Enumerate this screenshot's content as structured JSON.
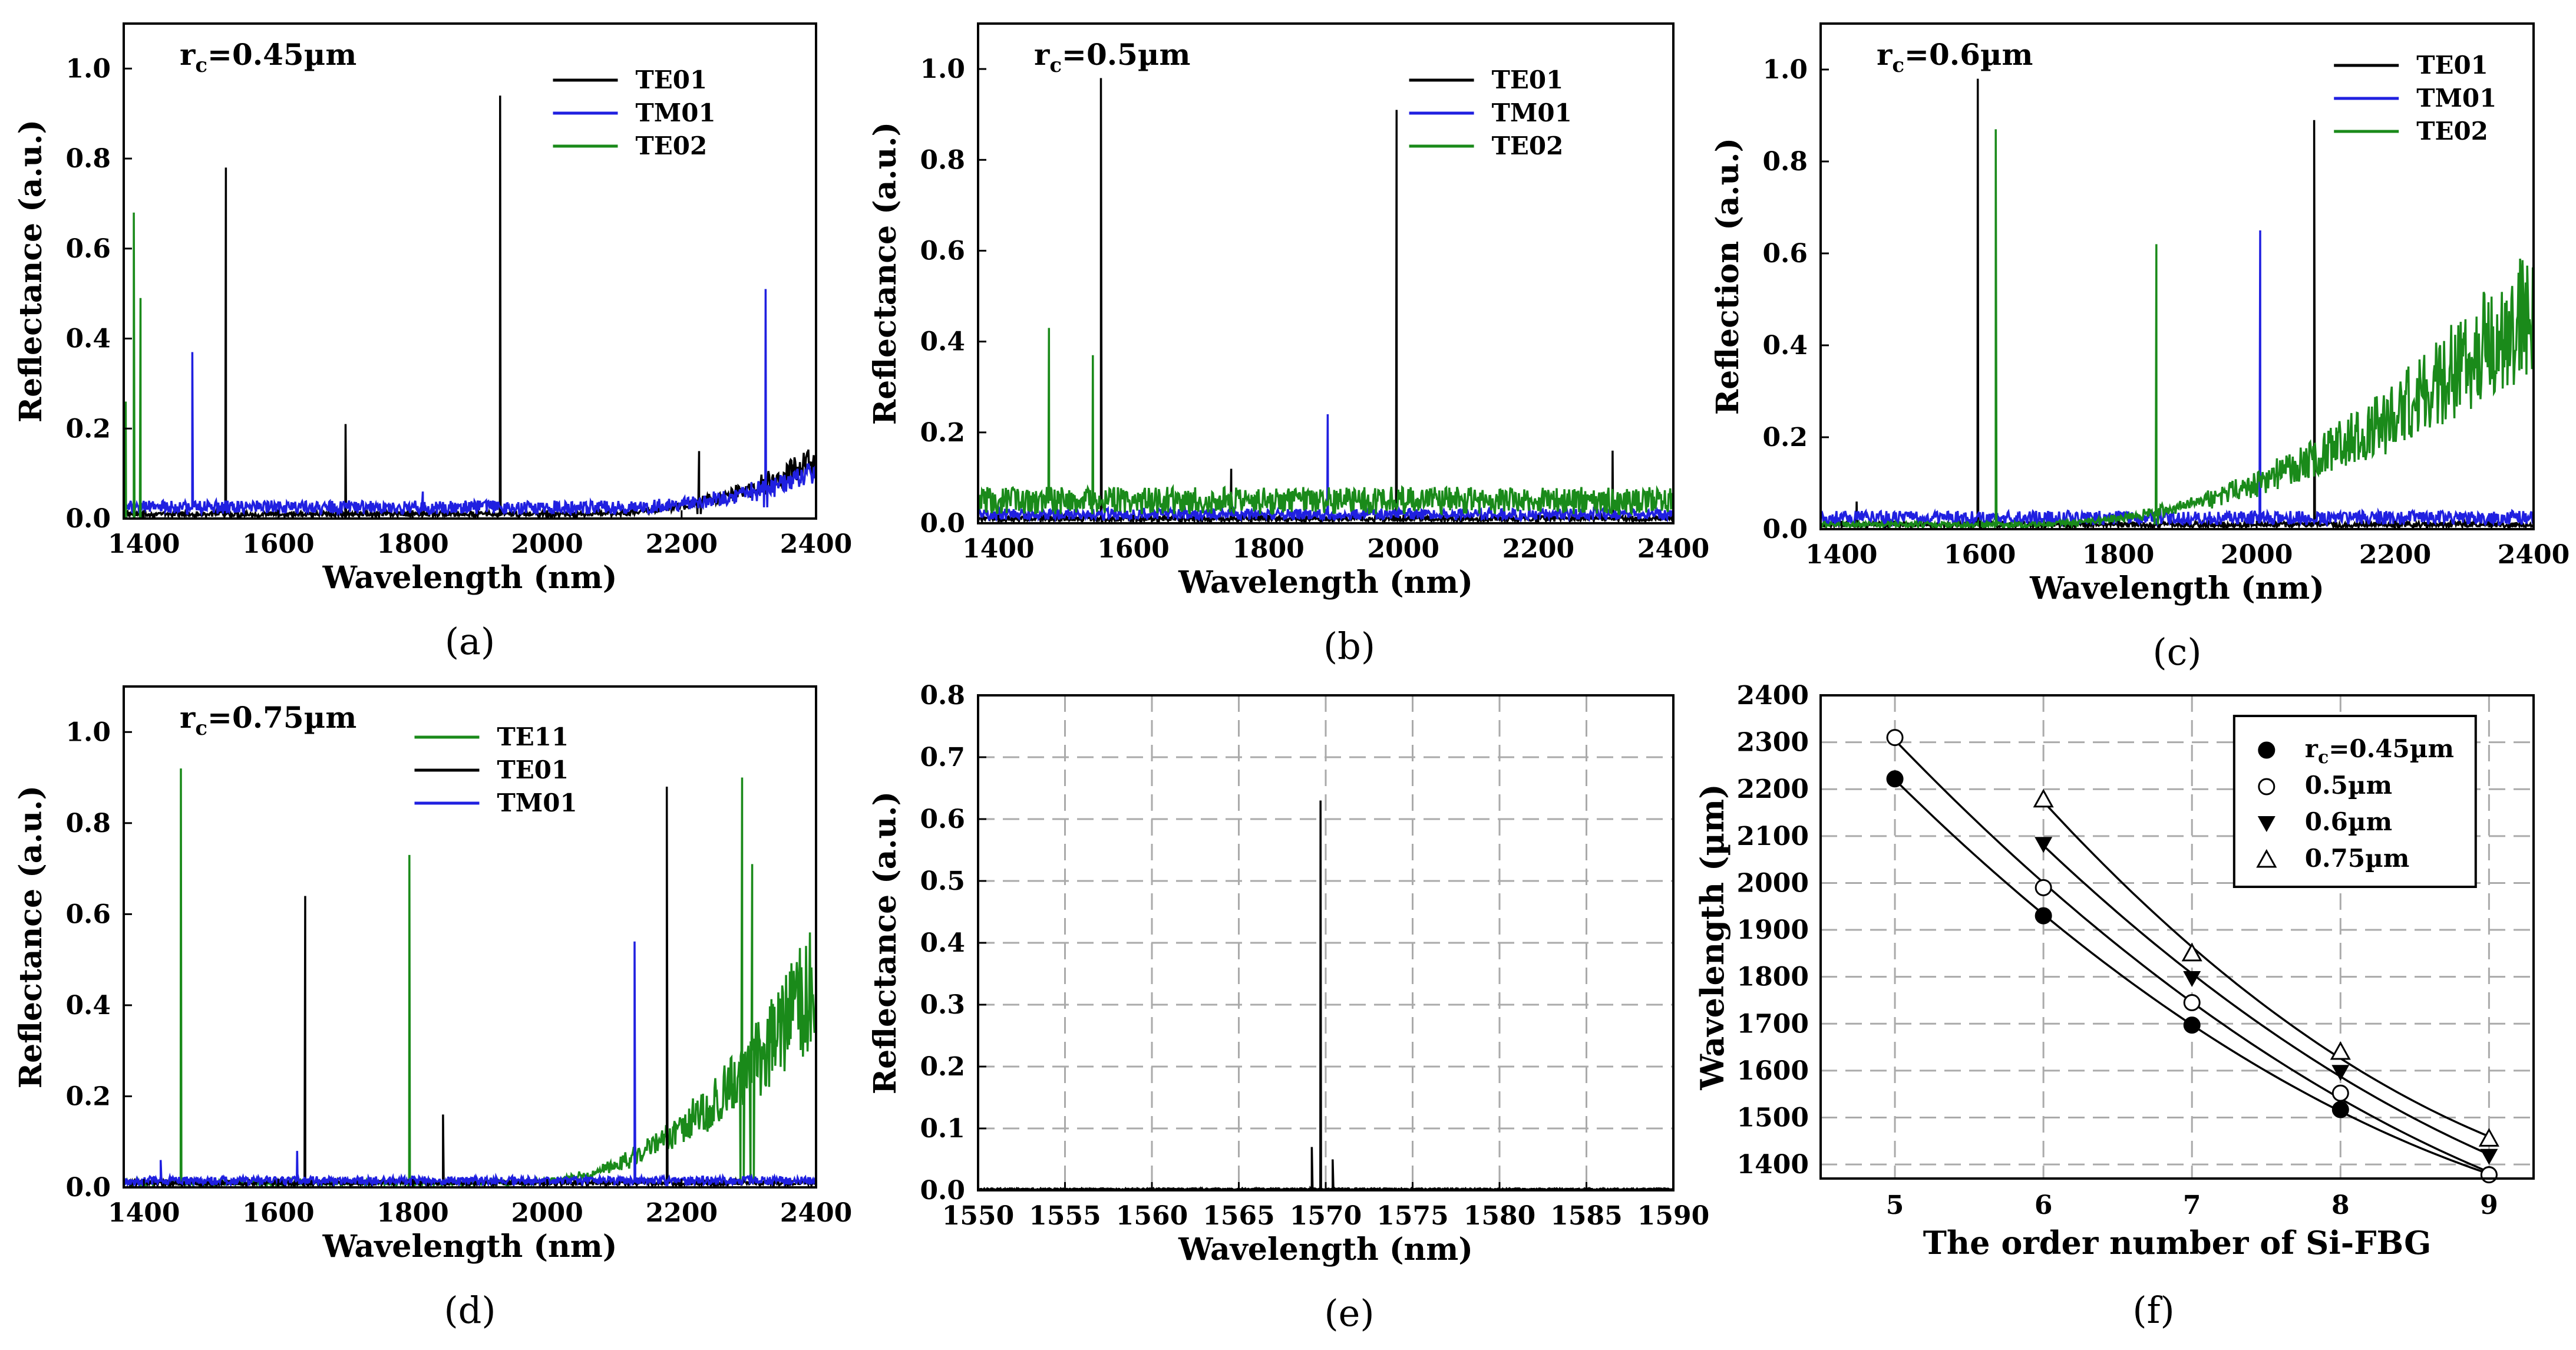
{
  "chart_data": [
    {
      "panel": "a",
      "type": "line",
      "caption": "(a)",
      "annotation": "r",
      "annotation_sub": "c",
      "annotation_rest": "=0.45µm",
      "xlabel": "Wavelength (nm)",
      "ylabel": "Reflectance (a.u.)",
      "xlim": [
        1370,
        2400
      ],
      "ylim": [
        0,
        1.1
      ],
      "xticks": [
        1400,
        1600,
        1800,
        2000,
        2200,
        2400
      ],
      "yticks": [
        0.0,
        0.2,
        0.4,
        0.6,
        0.8,
        1.0
      ],
      "ytick_labels": [
        "0.0",
        "0.2",
        "0.4",
        "0.6",
        "0.8",
        "1.0"
      ],
      "grid": false,
      "legend_position": "top-right",
      "series": [
        {
          "name": "TE01",
          "color": "#000000",
          "peaks": [
            [
              1522,
              0.78
            ],
            [
              1700,
              0.21
            ],
            [
              1930,
              0.94
            ],
            [
              2226,
              0.15
            ]
          ],
          "baseline": 0.01,
          "rise_start": 2050,
          "rise_end": 0.15
        },
        {
          "name": "TM01",
          "color": "#2020e0",
          "peaks": [
            [
              1472,
              0.37
            ],
            [
              1815,
              0.06
            ],
            [
              2325,
              0.51
            ]
          ],
          "baseline": 0.025,
          "rise_start": 2100,
          "rise_end": 0.1
        },
        {
          "name": "TE02",
          "color": "#1a8a1a",
          "peaks": [
            [
              1373,
              0.26
            ],
            [
              1385,
              0.68
            ],
            [
              1395,
              0.49
            ]
          ],
          "baseline": 0.0,
          "rise_start": null,
          "rise_end": 0.0
        }
      ]
    },
    {
      "panel": "b",
      "type": "line",
      "caption": "(b)",
      "annotation": "r",
      "annotation_sub": "c",
      "annotation_rest": "=0.5µm",
      "xlabel": "Wavelength (nm)",
      "ylabel": "Reflectance (a.u.)",
      "xlim": [
        1370,
        2400
      ],
      "ylim": [
        0,
        1.1
      ],
      "xticks": [
        1400,
        1600,
        1800,
        2000,
        2200,
        2400
      ],
      "yticks": [
        0.0,
        0.2,
        0.4,
        0.6,
        0.8,
        1.0
      ],
      "ytick_labels": [
        "0.0",
        "0.2",
        "0.4",
        "0.6",
        "0.8",
        "1.0"
      ],
      "grid": false,
      "legend_position": "top-right",
      "series": [
        {
          "name": "TE01",
          "color": "#000000",
          "peaks": [
            [
              1552,
              0.98
            ],
            [
              1745,
              0.12
            ],
            [
              1990,
              0.91
            ],
            [
              2310,
              0.16
            ]
          ],
          "baseline": 0.01,
          "rise_start": null,
          "rise_end": 0.0
        },
        {
          "name": "TM01",
          "color": "#2020e0",
          "peaks": [
            [
              1888,
              0.24
            ]
          ],
          "baseline": 0.02,
          "rise_start": null,
          "rise_end": 0.0
        },
        {
          "name": "TE02",
          "color": "#1a8a1a",
          "peaks": [
            [
              1475,
              0.43
            ],
            [
              1540,
              0.37
            ]
          ],
          "baseline": 0.05,
          "rise_start": null,
          "rise_end": 0.0
        }
      ]
    },
    {
      "panel": "c",
      "type": "line",
      "caption": "(c)",
      "annotation": "r",
      "annotation_sub": "c",
      "annotation_rest": "=0.6µm",
      "xlabel": "Wavelength (nm)",
      "ylabel": "Reflection (a.u.)",
      "xlim": [
        1370,
        2400
      ],
      "ylim": [
        0,
        1.1
      ],
      "xticks": [
        1400,
        1600,
        1800,
        2000,
        2200,
        2400
      ],
      "yticks": [
        0.0,
        0.2,
        0.4,
        0.6,
        0.8,
        1.0
      ],
      "ytick_labels": [
        "0.0",
        "0.2",
        "0.4",
        "0.6",
        "0.8",
        "1.0"
      ],
      "grid": false,
      "legend_position": "top-right",
      "series": [
        {
          "name": "TE01",
          "color": "#000000",
          "peaks": [
            [
              1422,
              0.06
            ],
            [
              1597,
              0.98
            ],
            [
              2083,
              0.89
            ]
          ],
          "baseline": 0.01,
          "rise_start": null,
          "rise_end": 0.0
        },
        {
          "name": "TM01",
          "color": "#2020e0",
          "peaks": [
            [
              2005,
              0.65
            ]
          ],
          "baseline": 0.025,
          "rise_start": null,
          "rise_end": 0.0
        },
        {
          "name": "TE02",
          "color": "#1a8a1a",
          "peaks": [
            [
              1623,
              0.87
            ],
            [
              1855,
              0.62
            ]
          ],
          "baseline": 0.01,
          "rise_start": 1650,
          "rise_end": 0.6
        }
      ]
    },
    {
      "panel": "d",
      "type": "line",
      "caption": "(d)",
      "annotation": "r",
      "annotation_sub": "c",
      "annotation_rest": "=0.75µm",
      "xlabel": "Wavelength (nm)",
      "ylabel": "Reflectance (a.u.)",
      "xlim": [
        1370,
        2400
      ],
      "ylim": [
        0,
        1.1
      ],
      "xticks": [
        1400,
        1600,
        1800,
        2000,
        2200,
        2400
      ],
      "yticks": [
        0.0,
        0.2,
        0.4,
        0.6,
        0.8,
        1.0
      ],
      "ytick_labels": [
        "0.0",
        "0.2",
        "0.4",
        "0.6",
        "0.8",
        "1.0"
      ],
      "grid": false,
      "legend_position": "top-center",
      "series": [
        {
          "name": "TE11",
          "color": "#1a8a1a",
          "peaks": [
            [
              1455,
              0.92
            ],
            [
              1795,
              0.73
            ],
            [
              2290,
              0.9
            ],
            [
              2305,
              0.71
            ]
          ],
          "baseline": 0.01,
          "rise_start": 1950,
          "rise_end": 0.55
        },
        {
          "name": "TE01",
          "color": "#000000",
          "peaks": [
            [
              1640,
              0.64
            ],
            [
              1845,
              0.16
            ],
            [
              2178,
              0.88
            ]
          ],
          "baseline": 0.01,
          "rise_start": null,
          "rise_end": 0.0
        },
        {
          "name": "TM01",
          "color": "#2020e0",
          "peaks": [
            [
              1425,
              0.06
            ],
            [
              1628,
              0.08
            ],
            [
              2130,
              0.54
            ]
          ],
          "baseline": 0.015,
          "rise_start": null,
          "rise_end": 0.0
        }
      ]
    },
    {
      "panel": "e",
      "type": "line",
      "caption": "(e)",
      "xlabel": "Wavelength (nm)",
      "ylabel": "Reflectance (a.u.)",
      "xlim": [
        1550,
        1590
      ],
      "ylim": [
        0,
        0.8
      ],
      "xticks": [
        1550,
        1555,
        1560,
        1565,
        1570,
        1575,
        1580,
        1585,
        1590
      ],
      "yticks": [
        0.0,
        0.1,
        0.2,
        0.3,
        0.4,
        0.5,
        0.6,
        0.7,
        0.8
      ],
      "ytick_labels": [
        "0.0",
        "0.1",
        "0.2",
        "0.3",
        "0.4",
        "0.5",
        "0.6",
        "0.7",
        "0.8"
      ],
      "grid": true,
      "series": [
        {
          "name": "Reflectance",
          "color": "#000000",
          "peaks": [
            [
              1569.7,
              0.63
            ],
            [
              1569.2,
              0.07
            ],
            [
              1570.4,
              0.05
            ]
          ],
          "baseline": 0.002,
          "rise_start": null,
          "rise_end": 0.0
        }
      ]
    },
    {
      "panel": "f",
      "type": "scatter",
      "caption": "(f)",
      "xlabel": "The order number of Si-FBG",
      "ylabel": "Wavelength (µm)",
      "xlim": [
        4.5,
        9.3
      ],
      "ylim": [
        1370,
        2400
      ],
      "xticks": [
        5,
        6,
        7,
        8,
        9
      ],
      "yticks": [
        1400,
        1500,
        1600,
        1700,
        1800,
        1900,
        2000,
        2100,
        2200,
        2300,
        2400
      ],
      "grid": true,
      "legend_position": "top-right",
      "series": [
        {
          "name": "r",
          "name_sub": "c",
          "name_rest": "=0.45µm",
          "marker": "filled-circle",
          "x": [
            5,
            6,
            7,
            8,
            9
          ],
          "y": [
            2222,
            1930,
            1697,
            1517,
            1378
          ]
        },
        {
          "name": "0.5µm",
          "name_sub": "",
          "name_rest": "",
          "marker": "open-circle",
          "x": [
            5,
            6,
            7,
            8,
            9
          ],
          "y": [
            2310,
            1990,
            1745,
            1552,
            1378
          ]
        },
        {
          "name": "0.6µm",
          "name_sub": "",
          "name_rest": "",
          "marker": "filled-triangle-down",
          "x": [
            6,
            7,
            8,
            9
          ],
          "y": [
            2083,
            1797,
            1597,
            1418
          ]
        },
        {
          "name": "0.75µm",
          "name_sub": "",
          "name_rest": "",
          "marker": "open-triangle-up",
          "x": [
            6,
            7,
            8,
            9
          ],
          "y": [
            2178,
            1850,
            1640,
            1455
          ]
        }
      ]
    }
  ]
}
